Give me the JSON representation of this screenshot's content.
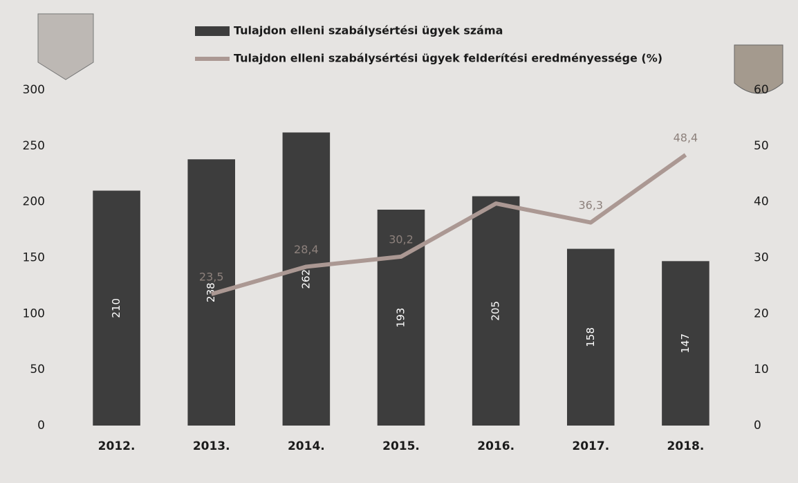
{
  "chart_data": {
    "type": "bar-line",
    "categories": [
      "2012.",
      "2013.",
      "2014.",
      "2015.",
      "2016.",
      "2017.",
      "2018."
    ],
    "series": [
      {
        "name": "Tulajdon elleni szabálysértési ügyek száma",
        "type": "bar",
        "color": "#3d3d3d",
        "values": [
          210,
          238,
          262,
          193,
          205,
          158,
          147
        ]
      },
      {
        "name": "Tulajdon elleni szabálysértési ügyek felderítési eredményessége (%)",
        "type": "line",
        "axis": "y2",
        "color": "#ab9893",
        "values": [
          null,
          23.5,
          28.4,
          30.2,
          39.7,
          36.3,
          48.4
        ],
        "value_labels": [
          null,
          "23,5",
          "28,4",
          "30,2",
          null,
          "36,3",
          "48,4"
        ]
      }
    ],
    "ylim": [
      0,
      300
    ],
    "yticks": [
      0,
      50,
      100,
      150,
      200,
      250,
      300
    ],
    "y2lim": [
      0,
      60
    ],
    "y2ticks": [
      0,
      10,
      20,
      30,
      40,
      50,
      60
    ]
  }
}
